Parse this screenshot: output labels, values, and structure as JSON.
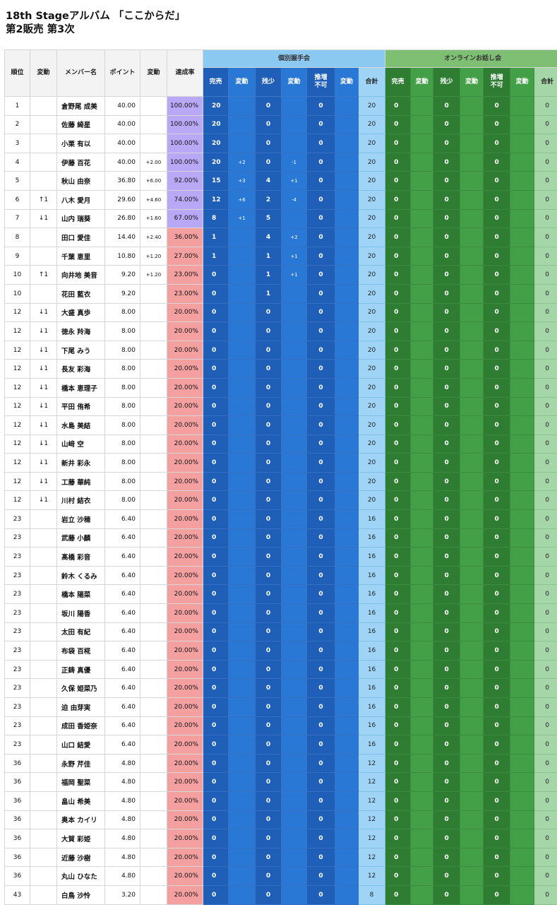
{
  "header": {
    "title_line1": "18th Stageアルバム 「ここからだ」",
    "title_line2": "第2販売 第3次"
  },
  "columns": {
    "rank": "順位",
    "change": "変動",
    "member": "メンバー名",
    "points": "ポイント",
    "points_change": "変動",
    "rate": "達成率",
    "group_individual": "個別握手会",
    "group_online": "オンラインお話し会",
    "sub": [
      "完売",
      "変動",
      "残少",
      "変動",
      "推増不可",
      "変動",
      "合計"
    ]
  },
  "colors": {
    "rate_purple": "#b9a8f5",
    "rate_pink": "#f5a0a0",
    "blue_dark": "#1f5fb8",
    "blue_mid": "#2a78d6",
    "blue_light": "#9fd4f7",
    "green_dark": "#2e7d32",
    "green_mid": "#43a047",
    "green_light": "#a5d6a7"
  },
  "rows": [
    {
      "rank": "1",
      "chg": "",
      "name": "倉野尾 成美",
      "pts": "40.00",
      "pchg": "",
      "rate": "100.00%",
      "tier": "purple",
      "i": [
        "20",
        "",
        "0",
        "",
        "0",
        "",
        "20"
      ],
      "o": [
        "0",
        "",
        "0",
        "",
        "0",
        "",
        "0"
      ]
    },
    {
      "rank": "2",
      "chg": "",
      "name": "佐藤 綺星",
      "pts": "40.00",
      "pchg": "",
      "rate": "100.00%",
      "tier": "purple",
      "i": [
        "20",
        "",
        "0",
        "",
        "0",
        "",
        "20"
      ],
      "o": [
        "0",
        "",
        "0",
        "",
        "0",
        "",
        "0"
      ]
    },
    {
      "rank": "3",
      "chg": "",
      "name": "小栗 有以",
      "pts": "40.00",
      "pchg": "",
      "rate": "100.00%",
      "tier": "purple",
      "i": [
        "20",
        "",
        "0",
        "",
        "0",
        "",
        "20"
      ],
      "o": [
        "0",
        "",
        "0",
        "",
        "0",
        "",
        "0"
      ]
    },
    {
      "rank": "4",
      "chg": "",
      "name": "伊藤 百花",
      "pts": "40.00",
      "pchg": "+2.00",
      "rate": "100.00%",
      "tier": "purple",
      "i": [
        "20",
        "+2",
        "0",
        "-1",
        "0",
        "",
        "20"
      ],
      "o": [
        "0",
        "",
        "0",
        "",
        "0",
        "",
        "0"
      ]
    },
    {
      "rank": "5",
      "chg": "",
      "name": "秋山 由奈",
      "pts": "36.80",
      "pchg": "+6.00",
      "rate": "92.00%",
      "tier": "purple",
      "i": [
        "15",
        "+3",
        "4",
        "+1",
        "0",
        "",
        "20"
      ],
      "o": [
        "0",
        "",
        "0",
        "",
        "0",
        "",
        "0"
      ]
    },
    {
      "rank": "6",
      "chg": "↑1",
      "name": "八木 愛月",
      "pts": "29.60",
      "pchg": "+4.60",
      "rate": "74.00%",
      "tier": "purple",
      "i": [
        "12",
        "+6",
        "2",
        "-4",
        "0",
        "",
        "20"
      ],
      "o": [
        "0",
        "",
        "0",
        "",
        "0",
        "",
        "0"
      ]
    },
    {
      "rank": "7",
      "chg": "↓1",
      "name": "山内 瑞葵",
      "pts": "26.80",
      "pchg": "+1.60",
      "rate": "67.00%",
      "tier": "purple",
      "i": [
        "8",
        "+1",
        "5",
        "",
        "0",
        "",
        "20"
      ],
      "o": [
        "0",
        "",
        "0",
        "",
        "0",
        "",
        "0"
      ]
    },
    {
      "rank": "8",
      "chg": "",
      "name": "田口 愛佳",
      "pts": "14.40",
      "pchg": "+2.40",
      "rate": "36.00%",
      "tier": "pink",
      "i": [
        "1",
        "",
        "4",
        "+2",
        "0",
        "",
        "20"
      ],
      "o": [
        "0",
        "",
        "0",
        "",
        "0",
        "",
        "0"
      ]
    },
    {
      "rank": "9",
      "chg": "",
      "name": "千葉 恵里",
      "pts": "10.80",
      "pchg": "+1.20",
      "rate": "27.00%",
      "tier": "pink",
      "i": [
        "1",
        "",
        "1",
        "+1",
        "0",
        "",
        "20"
      ],
      "o": [
        "0",
        "",
        "0",
        "",
        "0",
        "",
        "0"
      ]
    },
    {
      "rank": "10",
      "chg": "↑1",
      "name": "向井地 美音",
      "pts": "9.20",
      "pchg": "+1.20",
      "rate": "23.00%",
      "tier": "pink",
      "i": [
        "0",
        "",
        "1",
        "+1",
        "0",
        "",
        "20"
      ],
      "o": [
        "0",
        "",
        "0",
        "",
        "0",
        "",
        "0"
      ]
    },
    {
      "rank": "10",
      "chg": "",
      "name": "花田 藍衣",
      "pts": "9.20",
      "pchg": "",
      "rate": "23.00%",
      "tier": "pink",
      "i": [
        "0",
        "",
        "1",
        "",
        "0",
        "",
        "20"
      ],
      "o": [
        "0",
        "",
        "0",
        "",
        "0",
        "",
        "0"
      ]
    },
    {
      "rank": "12",
      "chg": "↓1",
      "name": "大盛 真歩",
      "pts": "8.00",
      "pchg": "",
      "rate": "20.00%",
      "tier": "pink",
      "i": [
        "0",
        "",
        "0",
        "",
        "0",
        "",
        "20"
      ],
      "o": [
        "0",
        "",
        "0",
        "",
        "0",
        "",
        "0"
      ]
    },
    {
      "rank": "12",
      "chg": "↓1",
      "name": "徳永 羚海",
      "pts": "8.00",
      "pchg": "",
      "rate": "20.00%",
      "tier": "pink",
      "i": [
        "0",
        "",
        "0",
        "",
        "0",
        "",
        "20"
      ],
      "o": [
        "0",
        "",
        "0",
        "",
        "0",
        "",
        "0"
      ]
    },
    {
      "rank": "12",
      "chg": "↓1",
      "name": "下尾 みう",
      "pts": "8.00",
      "pchg": "",
      "rate": "20.00%",
      "tier": "pink",
      "i": [
        "0",
        "",
        "0",
        "",
        "0",
        "",
        "20"
      ],
      "o": [
        "0",
        "",
        "0",
        "",
        "0",
        "",
        "0"
      ]
    },
    {
      "rank": "12",
      "chg": "↓1",
      "name": "長友 彩海",
      "pts": "8.00",
      "pchg": "",
      "rate": "20.00%",
      "tier": "pink",
      "i": [
        "0",
        "",
        "0",
        "",
        "0",
        "",
        "20"
      ],
      "o": [
        "0",
        "",
        "0",
        "",
        "0",
        "",
        "0"
      ]
    },
    {
      "rank": "12",
      "chg": "↓1",
      "name": "橋本 恵理子",
      "pts": "8.00",
      "pchg": "",
      "rate": "20.00%",
      "tier": "pink",
      "i": [
        "0",
        "",
        "0",
        "",
        "0",
        "",
        "20"
      ],
      "o": [
        "0",
        "",
        "0",
        "",
        "0",
        "",
        "0"
      ]
    },
    {
      "rank": "12",
      "chg": "↓1",
      "name": "平田 侑希",
      "pts": "8.00",
      "pchg": "",
      "rate": "20.00%",
      "tier": "pink",
      "i": [
        "0",
        "",
        "0",
        "",
        "0",
        "",
        "20"
      ],
      "o": [
        "0",
        "",
        "0",
        "",
        "0",
        "",
        "0"
      ]
    },
    {
      "rank": "12",
      "chg": "↓1",
      "name": "水島 美結",
      "pts": "8.00",
      "pchg": "",
      "rate": "20.00%",
      "tier": "pink",
      "i": [
        "0",
        "",
        "0",
        "",
        "0",
        "",
        "20"
      ],
      "o": [
        "0",
        "",
        "0",
        "",
        "0",
        "",
        "0"
      ]
    },
    {
      "rank": "12",
      "chg": "↓1",
      "name": "山﨑 空",
      "pts": "8.00",
      "pchg": "",
      "rate": "20.00%",
      "tier": "pink",
      "i": [
        "0",
        "",
        "0",
        "",
        "0",
        "",
        "20"
      ],
      "o": [
        "0",
        "",
        "0",
        "",
        "0",
        "",
        "0"
      ]
    },
    {
      "rank": "12",
      "chg": "↓1",
      "name": "新井 彩永",
      "pts": "8.00",
      "pchg": "",
      "rate": "20.00%",
      "tier": "pink",
      "i": [
        "0",
        "",
        "0",
        "",
        "0",
        "",
        "20"
      ],
      "o": [
        "0",
        "",
        "0",
        "",
        "0",
        "",
        "0"
      ]
    },
    {
      "rank": "12",
      "chg": "↓1",
      "name": "工藤 華純",
      "pts": "8.00",
      "pchg": "",
      "rate": "20.00%",
      "tier": "pink",
      "i": [
        "0",
        "",
        "0",
        "",
        "0",
        "",
        "20"
      ],
      "o": [
        "0",
        "",
        "0",
        "",
        "0",
        "",
        "0"
      ]
    },
    {
      "rank": "12",
      "chg": "↓1",
      "name": "川村 結衣",
      "pts": "8.00",
      "pchg": "",
      "rate": "20.00%",
      "tier": "pink",
      "i": [
        "0",
        "",
        "0",
        "",
        "0",
        "",
        "20"
      ],
      "o": [
        "0",
        "",
        "0",
        "",
        "0",
        "",
        "0"
      ]
    },
    {
      "rank": "23",
      "chg": "",
      "name": "岩立 沙穂",
      "pts": "6.40",
      "pchg": "",
      "rate": "20.00%",
      "tier": "pink",
      "i": [
        "0",
        "",
        "0",
        "",
        "0",
        "",
        "16"
      ],
      "o": [
        "0",
        "",
        "0",
        "",
        "0",
        "",
        "0"
      ]
    },
    {
      "rank": "23",
      "chg": "",
      "name": "武藤 小麟",
      "pts": "6.40",
      "pchg": "",
      "rate": "20.00%",
      "tier": "pink",
      "i": [
        "0",
        "",
        "0",
        "",
        "0",
        "",
        "16"
      ],
      "o": [
        "0",
        "",
        "0",
        "",
        "0",
        "",
        "0"
      ]
    },
    {
      "rank": "23",
      "chg": "",
      "name": "髙橋 彩音",
      "pts": "6.40",
      "pchg": "",
      "rate": "20.00%",
      "tier": "pink",
      "i": [
        "0",
        "",
        "0",
        "",
        "0",
        "",
        "16"
      ],
      "o": [
        "0",
        "",
        "0",
        "",
        "0",
        "",
        "0"
      ]
    },
    {
      "rank": "23",
      "chg": "",
      "name": "鈴木 くるみ",
      "pts": "6.40",
      "pchg": "",
      "rate": "20.00%",
      "tier": "pink",
      "i": [
        "0",
        "",
        "0",
        "",
        "0",
        "",
        "16"
      ],
      "o": [
        "0",
        "",
        "0",
        "",
        "0",
        "",
        "0"
      ]
    },
    {
      "rank": "23",
      "chg": "",
      "name": "橋本 陽菜",
      "pts": "6.40",
      "pchg": "",
      "rate": "20.00%",
      "tier": "pink",
      "i": [
        "0",
        "",
        "0",
        "",
        "0",
        "",
        "16"
      ],
      "o": [
        "0",
        "",
        "0",
        "",
        "0",
        "",
        "0"
      ]
    },
    {
      "rank": "23",
      "chg": "",
      "name": "坂川 陽香",
      "pts": "6.40",
      "pchg": "",
      "rate": "20.00%",
      "tier": "pink",
      "i": [
        "0",
        "",
        "0",
        "",
        "0",
        "",
        "16"
      ],
      "o": [
        "0",
        "",
        "0",
        "",
        "0",
        "",
        "0"
      ]
    },
    {
      "rank": "23",
      "chg": "",
      "name": "太田 有紀",
      "pts": "6.40",
      "pchg": "",
      "rate": "20.00%",
      "tier": "pink",
      "i": [
        "0",
        "",
        "0",
        "",
        "0",
        "",
        "16"
      ],
      "o": [
        "0",
        "",
        "0",
        "",
        "0",
        "",
        "0"
      ]
    },
    {
      "rank": "23",
      "chg": "",
      "name": "布袋 百椛",
      "pts": "6.40",
      "pchg": "",
      "rate": "20.00%",
      "tier": "pink",
      "i": [
        "0",
        "",
        "0",
        "",
        "0",
        "",
        "16"
      ],
      "o": [
        "0",
        "",
        "0",
        "",
        "0",
        "",
        "0"
      ]
    },
    {
      "rank": "23",
      "chg": "",
      "name": "正鋳 真優",
      "pts": "6.40",
      "pchg": "",
      "rate": "20.00%",
      "tier": "pink",
      "i": [
        "0",
        "",
        "0",
        "",
        "0",
        "",
        "16"
      ],
      "o": [
        "0",
        "",
        "0",
        "",
        "0",
        "",
        "0"
      ]
    },
    {
      "rank": "23",
      "chg": "",
      "name": "久保 姫菜乃",
      "pts": "6.40",
      "pchg": "",
      "rate": "20.00%",
      "tier": "pink",
      "i": [
        "0",
        "",
        "0",
        "",
        "0",
        "",
        "16"
      ],
      "o": [
        "0",
        "",
        "0",
        "",
        "0",
        "",
        "0"
      ]
    },
    {
      "rank": "23",
      "chg": "",
      "name": "迫 由芽実",
      "pts": "6.40",
      "pchg": "",
      "rate": "20.00%",
      "tier": "pink",
      "i": [
        "0",
        "",
        "0",
        "",
        "0",
        "",
        "16"
      ],
      "o": [
        "0",
        "",
        "0",
        "",
        "0",
        "",
        "0"
      ]
    },
    {
      "rank": "23",
      "chg": "",
      "name": "成田 香姫奈",
      "pts": "6.40",
      "pchg": "",
      "rate": "20.00%",
      "tier": "pink",
      "i": [
        "0",
        "",
        "0",
        "",
        "0",
        "",
        "16"
      ],
      "o": [
        "0",
        "",
        "0",
        "",
        "0",
        "",
        "0"
      ]
    },
    {
      "rank": "23",
      "chg": "",
      "name": "山口 結愛",
      "pts": "6.40",
      "pchg": "",
      "rate": "20.00%",
      "tier": "pink",
      "i": [
        "0",
        "",
        "0",
        "",
        "0",
        "",
        "16"
      ],
      "o": [
        "0",
        "",
        "0",
        "",
        "0",
        "",
        "0"
      ]
    },
    {
      "rank": "36",
      "chg": "",
      "name": "永野 芹佳",
      "pts": "4.80",
      "pchg": "",
      "rate": "20.00%",
      "tier": "pink",
      "i": [
        "0",
        "",
        "0",
        "",
        "0",
        "",
        "12"
      ],
      "o": [
        "0",
        "",
        "0",
        "",
        "0",
        "",
        "0"
      ]
    },
    {
      "rank": "36",
      "chg": "",
      "name": "福岡 聖菜",
      "pts": "4.80",
      "pchg": "",
      "rate": "20.00%",
      "tier": "pink",
      "i": [
        "0",
        "",
        "0",
        "",
        "0",
        "",
        "12"
      ],
      "o": [
        "0",
        "",
        "0",
        "",
        "0",
        "",
        "0"
      ]
    },
    {
      "rank": "36",
      "chg": "",
      "name": "畠山 希美",
      "pts": "4.80",
      "pchg": "",
      "rate": "20.00%",
      "tier": "pink",
      "i": [
        "0",
        "",
        "0",
        "",
        "0",
        "",
        "12"
      ],
      "o": [
        "0",
        "",
        "0",
        "",
        "0",
        "",
        "0"
      ]
    },
    {
      "rank": "36",
      "chg": "",
      "name": "奥本 カイリ",
      "pts": "4.80",
      "pchg": "",
      "rate": "20.00%",
      "tier": "pink",
      "i": [
        "0",
        "",
        "0",
        "",
        "0",
        "",
        "12"
      ],
      "o": [
        "0",
        "",
        "0",
        "",
        "0",
        "",
        "0"
      ]
    },
    {
      "rank": "36",
      "chg": "",
      "name": "大賀 彩姫",
      "pts": "4.80",
      "pchg": "",
      "rate": "20.00%",
      "tier": "pink",
      "i": [
        "0",
        "",
        "0",
        "",
        "0",
        "",
        "12"
      ],
      "o": [
        "0",
        "",
        "0",
        "",
        "0",
        "",
        "0"
      ]
    },
    {
      "rank": "36",
      "chg": "",
      "name": "近藤 沙樹",
      "pts": "4.80",
      "pchg": "",
      "rate": "20.00%",
      "tier": "pink",
      "i": [
        "0",
        "",
        "0",
        "",
        "0",
        "",
        "12"
      ],
      "o": [
        "0",
        "",
        "0",
        "",
        "0",
        "",
        "0"
      ]
    },
    {
      "rank": "36",
      "chg": "",
      "name": "丸山 ひなた",
      "pts": "4.80",
      "pchg": "",
      "rate": "20.00%",
      "tier": "pink",
      "i": [
        "0",
        "",
        "0",
        "",
        "0",
        "",
        "12"
      ],
      "o": [
        "0",
        "",
        "0",
        "",
        "0",
        "",
        "0"
      ]
    },
    {
      "rank": "43",
      "chg": "",
      "name": "白鳥 沙怜",
      "pts": "3.20",
      "pchg": "",
      "rate": "20.00%",
      "tier": "pink",
      "i": [
        "0",
        "",
        "0",
        "",
        "0",
        "",
        "8"
      ],
      "o": [
        "0",
        "",
        "0",
        "",
        "0",
        "",
        "0"
      ]
    }
  ]
}
